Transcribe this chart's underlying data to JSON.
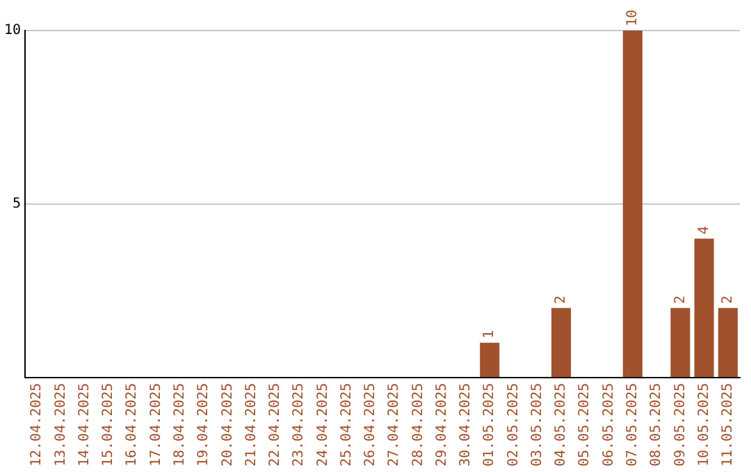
{
  "chart_data": {
    "type": "bar",
    "categories": [
      "12.04.2025",
      "13.04.2025",
      "14.04.2025",
      "15.04.2025",
      "16.04.2025",
      "17.04.2025",
      "18.04.2025",
      "19.04.2025",
      "20.04.2025",
      "21.04.2025",
      "22.04.2025",
      "23.04.2025",
      "24.04.2025",
      "25.04.2025",
      "26.04.2025",
      "27.04.2025",
      "28.04.2025",
      "29.04.2025",
      "30.04.2025",
      "01.05.2025",
      "02.05.2025",
      "03.05.2025",
      "04.05.2025",
      "05.05.2025",
      "06.05.2025",
      "07.05.2025",
      "08.05.2025",
      "09.05.2025",
      "10.05.2025",
      "11.05.2025"
    ],
    "values": [
      0,
      0,
      0,
      0,
      0,
      0,
      0,
      0,
      0,
      0,
      0,
      0,
      0,
      0,
      0,
      0,
      0,
      0,
      0,
      1,
      0,
      0,
      2,
      0,
      0,
      10,
      0,
      2,
      4,
      2
    ],
    "value_labels": [
      null,
      null,
      null,
      null,
      null,
      null,
      null,
      null,
      null,
      null,
      null,
      null,
      null,
      null,
      null,
      null,
      null,
      null,
      null,
      "1",
      null,
      null,
      "2",
      null,
      null,
      "10",
      null,
      "2",
      "4",
      "2"
    ],
    "color": "#a0522d",
    "ylim": [
      0,
      10
    ],
    "yticks": [
      5,
      10
    ],
    "grid": "y",
    "legend": false
  }
}
